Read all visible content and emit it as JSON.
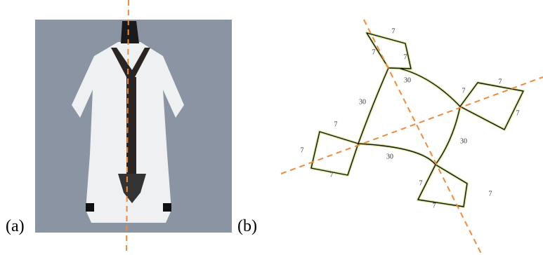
{
  "panels": {
    "a": {
      "label": "(a)"
    },
    "b": {
      "label": "(b)",
      "edge_labels": [
        "7",
        "7",
        "7",
        "30",
        "7",
        "7",
        "7",
        "30",
        "7",
        "7",
        "7",
        "30",
        "7",
        "7",
        "7",
        "30"
      ]
    }
  }
}
